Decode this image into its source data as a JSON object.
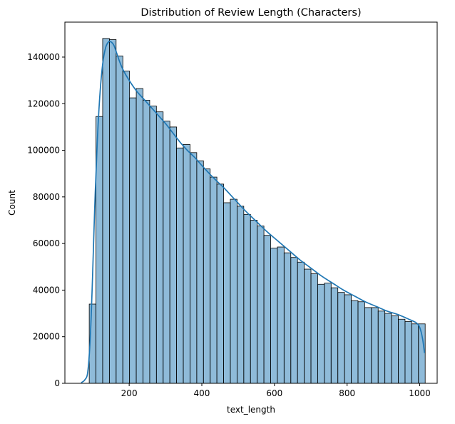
{
  "chart_data": {
    "type": "bar",
    "subtype": "histogram-with-kde",
    "title": "Distribution of Review Length (Characters)",
    "xlabel": "text_length",
    "ylabel": "Count",
    "xlim": [
      23,
      1048
    ],
    "ylim": [
      0,
      155000
    ],
    "x_ticks": [
      200,
      400,
      600,
      800,
      1000
    ],
    "y_ticks": [
      0,
      20000,
      40000,
      60000,
      80000,
      100000,
      120000,
      140000
    ],
    "x_tick_labels": [
      "200",
      "400",
      "600",
      "800",
      "1000"
    ],
    "y_tick_labels": [
      "0",
      "20000",
      "40000",
      "60000",
      "80000",
      "100000",
      "120000",
      "140000"
    ],
    "grid": false,
    "legend": "none",
    "bar_color": "#1f77b4",
    "bar_fill_opacity": 0.5,
    "bar_edge_color": "#000000",
    "kde_color": "#1f77b4",
    "bin_start": 90,
    "bin_width": 18.5,
    "counts": [
      34000,
      114500,
      148000,
      147500,
      140500,
      134000,
      122500,
      126500,
      121500,
      119000,
      116500,
      112500,
      110000,
      101000,
      102500,
      99000,
      95500,
      92000,
      88500,
      85500,
      77500,
      79000,
      76000,
      72500,
      70000,
      67500,
      63500,
      58000,
      58500,
      56000,
      54000,
      52000,
      49000,
      47000,
      42500,
      43000,
      41000,
      39000,
      38000,
      35500,
      35000,
      32500,
      32500,
      31000,
      30000,
      29000,
      27500,
      26500,
      25500,
      25500
    ],
    "kde": {
      "x": [
        68,
        78,
        86,
        93,
        99,
        105,
        112,
        119,
        127,
        135,
        143,
        150,
        158,
        166,
        175,
        185,
        200,
        220,
        240,
        260,
        280,
        300,
        320,
        340,
        360,
        380,
        400,
        430,
        460,
        490,
        520,
        550,
        580,
        610,
        640,
        670,
        700,
        730,
        760,
        790,
        820,
        850,
        880,
        910,
        940,
        970,
        990,
        1000,
        1008,
        1013
      ],
      "y": [
        300,
        1500,
        5000,
        20000,
        45000,
        75000,
        103000,
        123000,
        137000,
        144000,
        146500,
        146500,
        145000,
        141500,
        137500,
        134000,
        130000,
        125500,
        122000,
        118500,
        115000,
        111500,
        107500,
        103500,
        100000,
        97000,
        93500,
        88500,
        84000,
        79000,
        74000,
        69500,
        65000,
        61000,
        57000,
        53000,
        49500,
        46000,
        43000,
        40000,
        37500,
        35000,
        33000,
        31000,
        29500,
        27500,
        26000,
        24000,
        19000,
        13000
      ]
    }
  }
}
